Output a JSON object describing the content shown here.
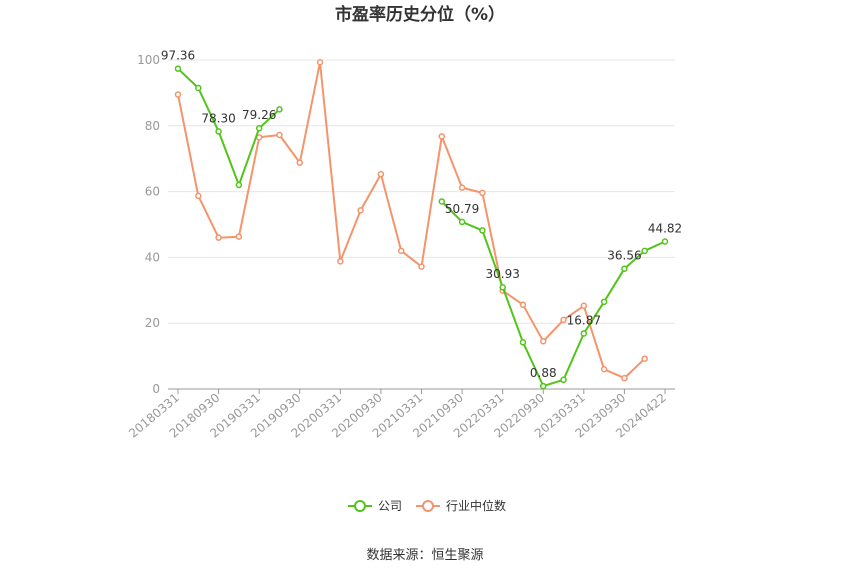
{
  "chart_data": {
    "type": "line",
    "title": "市盈率历史分位（%）",
    "source": "数据来源：恒生聚源",
    "ylim": [
      0,
      100
    ],
    "yticks": [
      0,
      20,
      40,
      60,
      80,
      100
    ],
    "grid": true,
    "legend_position": "bottom",
    "x": [
      "20180331",
      "20180630",
      "20180930",
      "20181231",
      "20190331",
      "20190630",
      "20190930",
      "20191231",
      "20200331",
      "20200630",
      "20200930",
      "20201231",
      "20210331",
      "20210630",
      "20210930",
      "20211231",
      "20220331",
      "20220630",
      "20220930",
      "20221231",
      "20230331",
      "20230630",
      "20230930",
      "20231231",
      "20240422"
    ],
    "x_tick_labels": [
      "20180331",
      "20180930",
      "20190331",
      "20190930",
      "20200331",
      "20200930",
      "20210331",
      "20210930",
      "20220331",
      "20220930",
      "20230331",
      "20230930",
      "20240422"
    ],
    "series": [
      {
        "name": "公司",
        "color": "#52c41a",
        "values": [
          97.36,
          91.5,
          78.3,
          62.0,
          79.26,
          85.0,
          null,
          null,
          null,
          null,
          null,
          null,
          null,
          57.0,
          50.79,
          48.2,
          30.93,
          14.2,
          0.88,
          2.8,
          16.87,
          26.5,
          36.56,
          42.0,
          44.82
        ]
      },
      {
        "name": "行业中位数",
        "color": "#f4946b",
        "values": [
          89.5,
          58.7,
          46.0,
          46.3,
          76.5,
          77.2,
          68.8,
          99.3,
          38.8,
          54.3,
          65.3,
          42.0,
          37.2,
          76.8,
          61.2,
          59.6,
          29.9,
          25.6,
          14.5,
          21.0,
          25.3,
          6.0,
          3.3,
          9.2,
          null
        ]
      }
    ],
    "data_labels": [
      {
        "series": 0,
        "index": 0,
        "text": "97.36"
      },
      {
        "series": 0,
        "index": 2,
        "text": "78.30"
      },
      {
        "series": 0,
        "index": 4,
        "text": "79.26"
      },
      {
        "series": 0,
        "index": 14,
        "text": "50.79"
      },
      {
        "series": 0,
        "index": 16,
        "text": "30.93"
      },
      {
        "series": 0,
        "index": 18,
        "text": "0.88"
      },
      {
        "series": 0,
        "index": 20,
        "text": "16.87"
      },
      {
        "series": 0,
        "index": 22,
        "text": "36.56"
      },
      {
        "series": 0,
        "index": 24,
        "text": "44.82"
      }
    ]
  }
}
